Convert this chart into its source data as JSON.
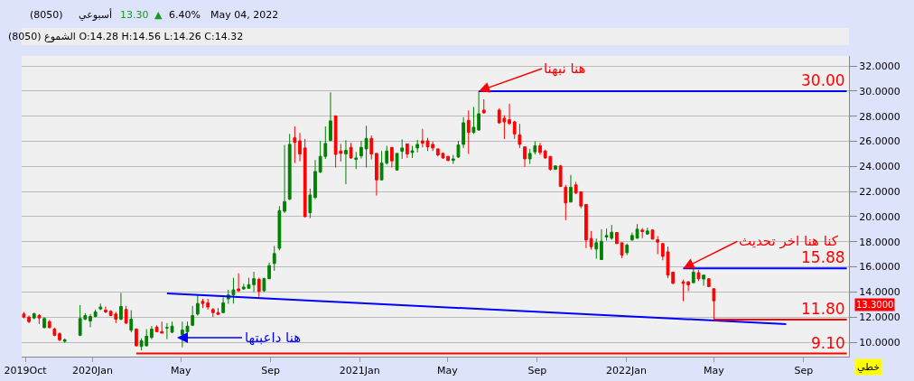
{
  "chart_data": {
    "type": "candlestick",
    "x": [
      "2019-09-29",
      "2019-10-06",
      "2019-10-13",
      "2019-10-20",
      "2019-10-27",
      "2019-11-03",
      "2019-11-10",
      "2019-11-17",
      "2019-11-24",
      "2019-12-15",
      "2019-12-22",
      "2019-12-29",
      "2020-01-05",
      "2020-01-12",
      "2020-01-19",
      "2020-01-26",
      "2020-02-02",
      "2020-02-09",
      "2020-02-16",
      "2020-02-23",
      "2020-03-01",
      "2020-03-08",
      "2020-03-15",
      "2020-03-22",
      "2020-03-29",
      "2020-04-05",
      "2020-04-12",
      "2020-04-19",
      "2020-05-03",
      "2020-05-10",
      "2020-05-17",
      "2020-05-24",
      "2020-05-31",
      "2020-06-07",
      "2020-06-14",
      "2020-06-21",
      "2020-06-28",
      "2020-07-05",
      "2020-07-12",
      "2020-07-19",
      "2020-07-26",
      "2020-08-02",
      "2020-08-09",
      "2020-08-16",
      "2020-08-23",
      "2020-08-30",
      "2020-09-06",
      "2020-09-13",
      "2020-09-20",
      "2020-09-27",
      "2020-10-04",
      "2020-10-11",
      "2020-10-18",
      "2020-10-25",
      "2020-11-01",
      "2020-11-08",
      "2020-11-15",
      "2020-11-22",
      "2020-11-29",
      "2020-12-06",
      "2020-12-13",
      "2020-12-20",
      "2020-12-27",
      "2021-01-03",
      "2021-01-10",
      "2021-01-17",
      "2021-01-24",
      "2021-01-31",
      "2021-02-07",
      "2021-02-14",
      "2021-02-21",
      "2021-02-28",
      "2021-03-07",
      "2021-03-14",
      "2021-03-21",
      "2021-03-28",
      "2021-04-04",
      "2021-04-11",
      "2021-04-18",
      "2021-04-25",
      "2021-05-02",
      "2021-05-09",
      "2021-05-16",
      "2021-05-23",
      "2021-05-30",
      "2021-06-06",
      "2021-06-13",
      "2021-06-20",
      "2021-07-11",
      "2021-07-18",
      "2021-07-25",
      "2021-08-01",
      "2021-08-08",
      "2021-08-15",
      "2021-08-22",
      "2021-08-29",
      "2021-09-05",
      "2021-09-12",
      "2021-09-19",
      "2021-09-26",
      "2021-10-03",
      "2021-10-10",
      "2021-10-17",
      "2021-10-24",
      "2021-10-31",
      "2021-11-07",
      "2021-11-14",
      "2021-11-21",
      "2021-11-28",
      "2021-12-05",
      "2021-12-12",
      "2021-12-19",
      "2021-12-26",
      "2022-01-02",
      "2022-01-09",
      "2022-01-16",
      "2022-01-23",
      "2022-01-30",
      "2022-02-06",
      "2022-02-13",
      "2022-02-20",
      "2022-02-27",
      "2022-03-06",
      "2022-03-20",
      "2022-03-27",
      "2022-04-03",
      "2022-04-10",
      "2022-04-17",
      "2022-04-24",
      "2022-05-01"
    ],
    "ohlc": [
      [
        12.24,
        12.41,
        11.9,
        12.0
      ],
      [
        12.0,
        12.12,
        11.52,
        11.64
      ],
      [
        11.93,
        12.36,
        11.83,
        12.27
      ],
      [
        12.12,
        12.24,
        11.45,
        11.93
      ],
      [
        11.16,
        12.0,
        11.11,
        11.88
      ],
      [
        11.64,
        11.76,
        11.11,
        11.16
      ],
      [
        11.04,
        11.16,
        10.48,
        10.55
      ],
      [
        10.67,
        10.79,
        10.07,
        10.19
      ],
      [
        10.07,
        10.3,
        9.95,
        10.19
      ],
      [
        10.55,
        12.96,
        10.48,
        11.88
      ],
      [
        11.83,
        12.31,
        11.76,
        12.12
      ],
      [
        11.69,
        12.24,
        11.2,
        12.05
      ],
      [
        12.05,
        12.6,
        11.98,
        12.41
      ],
      [
        12.65,
        13.08,
        12.55,
        12.8
      ],
      [
        12.55,
        12.84,
        12.31,
        12.41
      ],
      [
        12.46,
        12.55,
        12.07,
        12.12
      ],
      [
        12.24,
        12.41,
        11.52,
        11.83
      ],
      [
        11.83,
        13.93,
        11.76,
        12.84
      ],
      [
        12.6,
        12.89,
        11.45,
        11.52
      ],
      [
        10.96,
        12.55,
        10.79,
        11.83
      ],
      [
        11.04,
        11.11,
        9.66,
        9.71
      ],
      [
        9.66,
        10.31,
        9.35,
        10.12
      ],
      [
        9.71,
        11.04,
        9.66,
        10.48
      ],
      [
        10.38,
        11.28,
        10.24,
        11.04
      ],
      [
        11.2,
        11.35,
        10.79,
        10.84
      ],
      [
        10.84,
        11.64,
        10.72,
        10.72
      ],
      [
        11.14,
        11.52,
        10.24,
        11.16
      ],
      [
        10.79,
        11.64,
        10.72,
        11.28
      ],
      [
        10.62,
        11.64,
        9.59,
        10.96
      ],
      [
        10.84,
        11.64,
        10.55,
        11.28
      ],
      [
        11.35,
        12.89,
        11.28,
        12.12
      ],
      [
        12.24,
        13.76,
        12.12,
        13.08
      ],
      [
        13.25,
        13.45,
        12.72,
        13.08
      ],
      [
        13.13,
        13.45,
        12.6,
        12.8
      ],
      [
        12.6,
        12.72,
        12.0,
        12.36
      ],
      [
        12.36,
        12.72,
        12.17,
        12.22
      ],
      [
        12.36,
        13.57,
        12.31,
        13.13
      ],
      [
        13.45,
        14.17,
        13.06,
        13.76
      ],
      [
        13.76,
        15.13,
        13.08,
        14.17
      ],
      [
        14.24,
        15.49,
        14.0,
        14.1
      ],
      [
        14.24,
        14.65,
        14.17,
        14.39
      ],
      [
        14.29,
        15.13,
        14.24,
        14.58
      ],
      [
        14.58,
        15.61,
        14.0,
        15.06
      ],
      [
        15.01,
        15.13,
        13.61,
        14.05
      ],
      [
        14.1,
        15.13,
        14.0,
        15.06
      ],
      [
        15.06,
        16.34,
        15.01,
        16.1
      ],
      [
        16.27,
        17.66,
        15.69,
        17.06
      ],
      [
        17.48,
        20.84,
        17.31,
        20.48
      ],
      [
        20.43,
        25.71,
        20.29,
        21.2
      ],
      [
        21.39,
        26.59,
        21.32,
        25.76
      ],
      [
        26.28,
        27.19,
        24.27,
        25.92
      ],
      [
        26.04,
        26.67,
        24.41,
        24.99
      ],
      [
        25.47,
        26.19,
        19.95,
        20.0
      ],
      [
        20.31,
        22.23,
        19.88,
        21.73
      ],
      [
        21.53,
        24.51,
        21.39,
        23.6
      ],
      [
        23.55,
        26.04,
        23.48,
        24.8
      ],
      [
        24.8,
        27.19,
        24.6,
        25.83
      ],
      [
        26.07,
        29.9,
        26.0,
        27.63
      ],
      [
        28.03,
        28.03,
        23.91,
        24.96
      ],
      [
        25.23,
        25.8,
        24.39,
        25.04
      ],
      [
        24.99,
        26.09,
        22.59,
        25.28
      ],
      [
        25.52,
        25.88,
        24.6,
        24.68
      ],
      [
        24.56,
        25.16,
        23.79,
        24.68
      ],
      [
        24.84,
        26.04,
        24.63,
        25.52
      ],
      [
        25.4,
        27.24,
        23.91,
        26.23
      ],
      [
        26.23,
        26.47,
        24.56,
        24.99
      ],
      [
        25.04,
        25.04,
        21.68,
        22.93
      ],
      [
        22.93,
        25.23,
        22.88,
        24.27
      ],
      [
        24.27,
        25.64,
        24.15,
        25.23
      ],
      [
        25.52,
        25.52,
        23.91,
        24.44
      ],
      [
        23.72,
        25.04,
        23.67,
        25.04
      ],
      [
        25.2,
        26.16,
        24.6,
        25.47
      ],
      [
        25.8,
        25.8,
        24.68,
        24.99
      ],
      [
        25.11,
        25.64,
        24.68,
        25.25
      ],
      [
        25.47,
        26.11,
        25.11,
        25.76
      ],
      [
        26.04,
        27.0,
        25.52,
        25.85
      ],
      [
        26.04,
        26.28,
        25.23,
        25.56
      ],
      [
        25.76,
        26.0,
        25.23,
        25.47
      ],
      [
        25.4,
        25.4,
        24.8,
        24.92
      ],
      [
        25.04,
        25.11,
        24.6,
        24.68
      ],
      [
        24.8,
        24.84,
        24.41,
        24.48
      ],
      [
        24.48,
        24.92,
        24.2,
        24.6
      ],
      [
        24.75,
        26.04,
        24.68,
        25.71
      ],
      [
        25.76,
        27.91,
        25.47,
        27.48
      ],
      [
        27.67,
        28.47,
        24.99,
        26.71
      ],
      [
        26.71,
        28.75,
        26.59,
        27.12
      ],
      [
        26.9,
        30.0,
        26.83,
        28.2
      ],
      [
        28.49,
        29.35,
        28.2,
        28.27
      ],
      [
        28.49,
        28.63,
        27.39,
        27.48
      ],
      [
        27.84,
        28.08,
        26.19,
        27.55
      ],
      [
        27.72,
        28.99,
        27.31,
        27.43
      ],
      [
        27.55,
        27.63,
        26.19,
        26.59
      ],
      [
        26.52,
        27.39,
        25.47,
        25.76
      ],
      [
        25.56,
        25.56,
        23.96,
        24.6
      ],
      [
        24.6,
        25.4,
        24.2,
        25.04
      ],
      [
        25.16,
        26.0,
        24.96,
        25.64
      ],
      [
        25.64,
        25.88,
        24.92,
        25.11
      ],
      [
        25.23,
        25.33,
        24.6,
        24.68
      ],
      [
        24.8,
        24.8,
        23.67,
        23.76
      ],
      [
        23.77,
        24.09,
        23.73,
        24.04
      ],
      [
        24.04,
        24.13,
        22.41,
        22.41
      ],
      [
        22.34,
        22.53,
        19.72,
        21.09
      ],
      [
        21.16,
        23.32,
        21.16,
        22.34
      ],
      [
        22.53,
        22.77,
        21.81,
        21.88
      ],
      [
        21.98,
        21.98,
        20.68,
        20.85
      ],
      [
        20.97,
        20.97,
        17.49,
        18.14
      ],
      [
        18.26,
        18.86,
        17.37,
        17.61
      ],
      [
        17.42,
        18.26,
        16.65,
        17.92
      ],
      [
        16.58,
        19.0,
        16.58,
        18.04
      ],
      [
        18.38,
        19.05,
        18.09,
        18.5
      ],
      [
        18.28,
        19.34,
        18.16,
        18.76
      ],
      [
        18.74,
        18.74,
        17.85,
        17.85
      ],
      [
        17.92,
        17.92,
        16.7,
        16.94
      ],
      [
        17.13,
        17.85,
        16.94,
        17.73
      ],
      [
        18.14,
        18.74,
        18.09,
        18.5
      ],
      [
        18.28,
        19.41,
        18.28,
        19.0
      ],
      [
        18.93,
        19.1,
        18.28,
        18.81
      ],
      [
        18.62,
        19.12,
        18.57,
        18.86
      ],
      [
        18.93,
        19.0,
        18.21,
        18.21
      ],
      [
        18.16,
        18.45,
        17.01,
        17.97
      ],
      [
        17.85,
        17.9,
        16.53,
        16.84
      ],
      [
        17.2,
        17.61,
        15.1,
        15.34
      ],
      [
        15.58,
        15.58,
        14.62,
        14.69
      ],
      [
        14.8,
        14.98,
        13.26,
        14.69
      ],
      [
        14.81,
        14.86,
        14.07,
        14.57
      ],
      [
        14.74,
        15.88,
        14.69,
        15.58
      ],
      [
        15.53,
        15.77,
        14.86,
        15.05
      ],
      [
        15.03,
        15.34,
        14.5,
        15.34
      ],
      [
        15.05,
        15.1,
        14.38,
        14.43
      ],
      [
        14.26,
        14.26,
        11.8,
        13.3
      ]
    ],
    "colors": [
      "#ff0000",
      "#ff0000",
      "#008000",
      "#ff0000",
      "#008000",
      "#ff0000",
      "#ff0000",
      "#ff0000",
      "#008000",
      "#008000",
      "#008000",
      "#008000",
      "#008000",
      "#008000",
      "#ff0000",
      "#ff0000",
      "#ff0000",
      "#008000",
      "#ff0000",
      "#008000",
      "#ff0000",
      "#008000",
      "#008000",
      "#008000",
      "#ff0000",
      "#ff0000",
      "#008000",
      "#008000",
      "#008000",
      "#008000",
      "#008000",
      "#008000",
      "#ff0000",
      "#ff0000",
      "#ff0000",
      "#ff0000",
      "#008000",
      "#008000",
      "#008000",
      "#ff0000",
      "#008000",
      "#008000",
      "#008000",
      "#ff0000",
      "#008000",
      "#008000",
      "#008000",
      "#008000",
      "#008000",
      "#008000",
      "#ff0000",
      "#ff0000",
      "#ff0000",
      "#008000",
      "#008000",
      "#008000",
      "#008000",
      "#008000",
      "#ff0000",
      "#ff0000",
      "#008000",
      "#ff0000",
      "#008000",
      "#008000",
      "#008000",
      "#ff0000",
      "#ff0000",
      "#008000",
      "#008000",
      "#ff0000",
      "#008000",
      "#008000",
      "#ff0000",
      "#008000",
      "#008000",
      "#ff0000",
      "#ff0000",
      "#ff0000",
      "#ff0000",
      "#ff0000",
      "#ff0000",
      "#008000",
      "#008000",
      "#008000",
      "#ff0000",
      "#008000",
      "#008000",
      "#ff0000",
      "#ff0000",
      "#ff0000",
      "#ff0000",
      "#ff0000",
      "#ff0000",
      "#ff0000",
      "#008000",
      "#008000",
      "#ff0000",
      "#ff0000",
      "#ff0000",
      "#008000",
      "#ff0000",
      "#ff0000",
      "#008000",
      "#ff0000",
      "#ff0000",
      "#ff0000",
      "#ff0000",
      "#008000",
      "#008000",
      "#008000",
      "#008000",
      "#ff0000",
      "#ff0000",
      "#008000",
      "#008000",
      "#008000",
      "#ff0000",
      "#008000",
      "#ff0000",
      "#ff0000",
      "#ff0000",
      "#ff0000",
      "#ff0000",
      "#ff0000",
      "#ff0000",
      "#008000",
      "#ff0000",
      "#008000",
      "#ff0000",
      "#ff0000"
    ],
    "series": [
      {
        "type": "line",
        "color": "#0000ff",
        "x": [
          "2020-04-12",
          "2022-08-08"
        ],
        "values": [
          13.88,
          11.44
        ]
      },
      {
        "type": "line",
        "color": "#0000ff",
        "x": [
          "2021-06-13",
          "2022-10-30"
        ],
        "values": [
          30,
          30
        ]
      },
      {
        "type": "line",
        "color": "#0000ff",
        "x": [
          "2022-03-20",
          "2022-10-30"
        ],
        "values": [
          15.88,
          15.88
        ]
      },
      {
        "type": "line",
        "color": "#ff0000",
        "x": [
          "2022-05-01",
          "2022-10-30"
        ],
        "values": [
          11.8,
          11.8
        ]
      },
      {
        "type": "line",
        "color": "#ff0000",
        "x": [
          "2020-03-01",
          "2022-10-30"
        ],
        "values": [
          9.1,
          9.1
        ]
      }
    ],
    "annotations": [
      "(8050)",
      "أسبوعي",
      "13.30",
      "▲",
      "6.40%",
      "May 04, 2022",
      "الشموع (8050) O:14.28 H:14.56 L:14.26 C:14.32",
      {
        "text": "هنا نبهنا",
        "x": "2021-06-13",
        "y": 30
      },
      {
        "text": "كنا هنا اخر تحديث",
        "x": "2022-03-20",
        "y": 15.88
      },
      "هنا داعبتها",
      {
        "text": "30.00",
        "x": "2022-10-30",
        "y": 30
      },
      {
        "text": "15.88",
        "x": "2022-10-30",
        "y": 15.88
      },
      {
        "text": "11.80",
        "x": "2022-10-30",
        "y": 11.8
      },
      {
        "text": "9.10",
        "x": "2022-10-30",
        "y": 9.1
      },
      "13.3000",
      "خطي"
    ],
    "xlim": [
      "2019-09-26",
      "2022-11-02"
    ],
    "xticks": [
      {
        "value": "2019-10-01",
        "label": "2019Oct"
      },
      {
        "value": "2020-01-01",
        "label": "2020Jan"
      },
      {
        "value": "2020-05-01",
        "label": "May"
      },
      {
        "value": "2020-09-01",
        "label": "Sep"
      },
      {
        "value": "2021-01-01",
        "label": "2021Jan"
      },
      {
        "value": "2021-05-01",
        "label": "May"
      },
      {
        "value": "2021-09-01",
        "label": "Sep"
      },
      {
        "value": "2022-01-01",
        "label": "2022Jan"
      },
      {
        "value": "2022-05-01",
        "label": "May"
      },
      {
        "value": "2022-09-01",
        "label": "Sep"
      }
    ],
    "ylim": [
      8.85,
      32.8
    ],
    "yticks": [
      {
        "value": 10,
        "label": "10.0000"
      },
      {
        "value": 12,
        "label": "12.0000"
      },
      {
        "value": 14,
        "label": "14.0000"
      },
      {
        "value": 16,
        "label": "16.0000"
      },
      {
        "value": 18,
        "label": "18.0000"
      },
      {
        "value": 20,
        "label": "20.0000"
      },
      {
        "value": 22,
        "label": "22.0000"
      },
      {
        "value": 24,
        "label": "24.0000"
      },
      {
        "value": 26,
        "label": "26.0000"
      },
      {
        "value": 28,
        "label": "28.0000"
      },
      {
        "value": 30,
        "label": "30.0000"
      },
      {
        "value": 32,
        "label": "32.0000"
      }
    ],
    "grid": "y"
  }
}
